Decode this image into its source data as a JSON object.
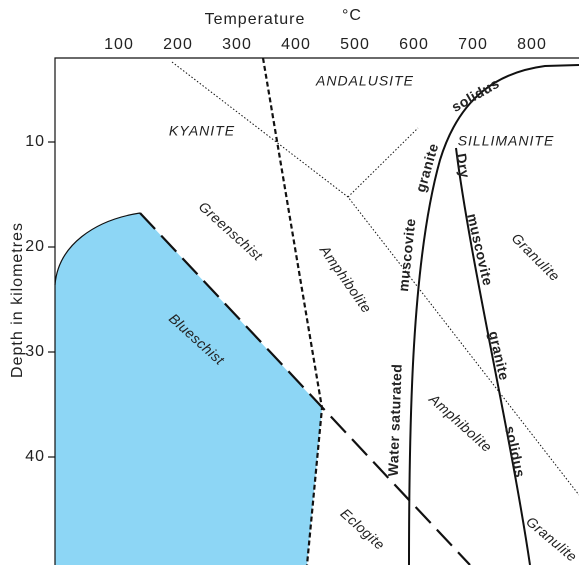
{
  "x_axis": {
    "label": "Temperature",
    "unit": "°C",
    "ticks": [
      100,
      200,
      300,
      400,
      500,
      600,
      700,
      800
    ]
  },
  "y_axis": {
    "label": "Depth   in   kilometres",
    "ticks": [
      10,
      20,
      30,
      40
    ]
  },
  "minerals": [
    "ANDALUSITE",
    "KYANITE",
    "SILLIMANITE"
  ],
  "facies": [
    "Greenschist",
    "Blueschist",
    "Amphibolite",
    "Amphibolite",
    "Granulite",
    "Granulite",
    "Eclogite"
  ],
  "water_saturated_solidus": [
    "Water   saturated",
    "muscovite",
    "granite",
    "solidus"
  ],
  "dry_solidus": [
    "Dry",
    "muscovite",
    "granite",
    "solidus"
  ]
}
